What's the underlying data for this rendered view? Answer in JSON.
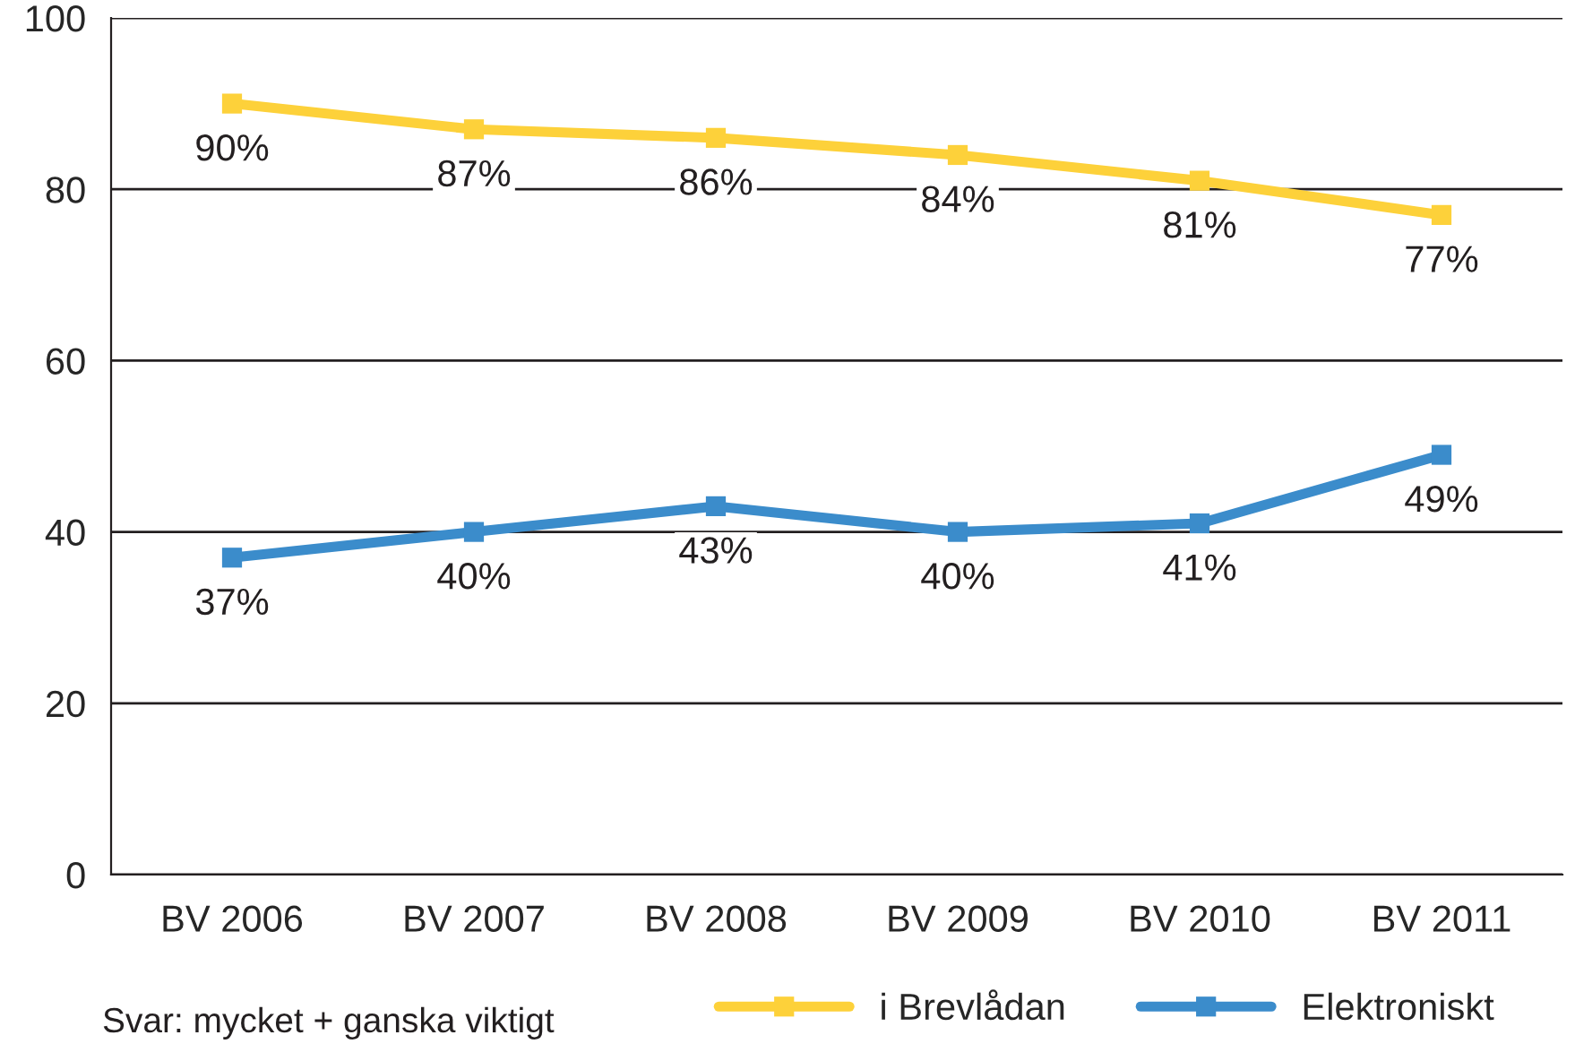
{
  "chart_data": {
    "type": "line",
    "categories": [
      "BV 2006",
      "BV 2007",
      "BV 2008",
      "BV 2009",
      "BV 2010",
      "BV 2011"
    ],
    "series": [
      {
        "name": "i Brevlådan",
        "color": "#fdd13a",
        "values": [
          90,
          87,
          86,
          84,
          81,
          77
        ],
        "value_labels": [
          "90%",
          "87%",
          "86%",
          "84%",
          "81%",
          "77%"
        ]
      },
      {
        "name": "Elektroniskt",
        "color": "#3b8ccb",
        "values": [
          37,
          40,
          43,
          40,
          41,
          49
        ],
        "value_labels": [
          "37%",
          "40%",
          "43%",
          "40%",
          "41%",
          "49%"
        ]
      }
    ],
    "ylim": [
      0,
      100
    ],
    "yticks": [
      0,
      20,
      40,
      60,
      80,
      100
    ],
    "grid": "y",
    "legend": "bottom right",
    "marker": "square",
    "line_style": "solid",
    "annotations": [
      "Svar: mycket + ganska viktigt"
    ]
  }
}
